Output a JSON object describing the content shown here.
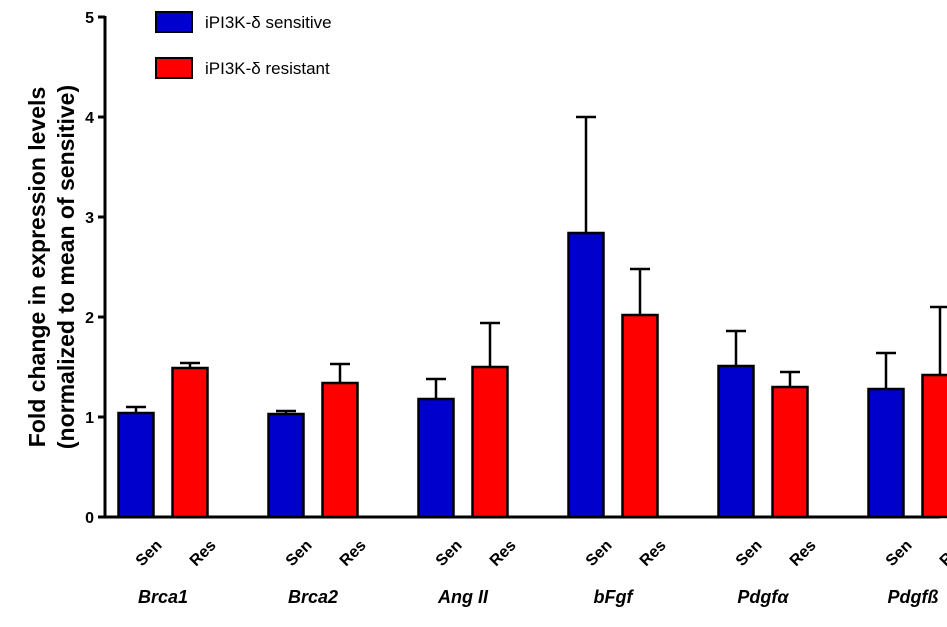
{
  "chart_data": {
    "type": "bar",
    "title": "",
    "xlabel": "",
    "ylabel_line1": "Fold change in expression levels",
    "ylabel_line2": "(normalized to mean of sensitive)",
    "ylim": [
      0,
      5
    ],
    "yticks": [
      "0",
      "1",
      "2",
      "3",
      "4",
      "5"
    ],
    "legend_position": "top-left",
    "categories": [
      "Brca1",
      "Brca2",
      "Ang II",
      "bFgf",
      "Pdgfα",
      "Pdgfß"
    ],
    "bar_labels": [
      "Sen",
      "Res"
    ],
    "series": [
      {
        "name": "iPI3K-δ sensitive",
        "short_label": "Sen",
        "color": "#0000CC",
        "values": [
          1.04,
          1.03,
          1.18,
          2.84,
          1.51,
          1.28
        ],
        "errors": [
          0.06,
          0.03,
          0.2,
          1.16,
          0.35,
          0.36
        ]
      },
      {
        "name": "iPI3K-δ resistant",
        "short_label": "Res",
        "color": "#FF0000",
        "values": [
          1.49,
          1.34,
          1.5,
          2.02,
          1.3,
          1.42
        ],
        "errors": [
          0.05,
          0.19,
          0.44,
          0.46,
          0.15,
          0.68
        ]
      }
    ]
  }
}
